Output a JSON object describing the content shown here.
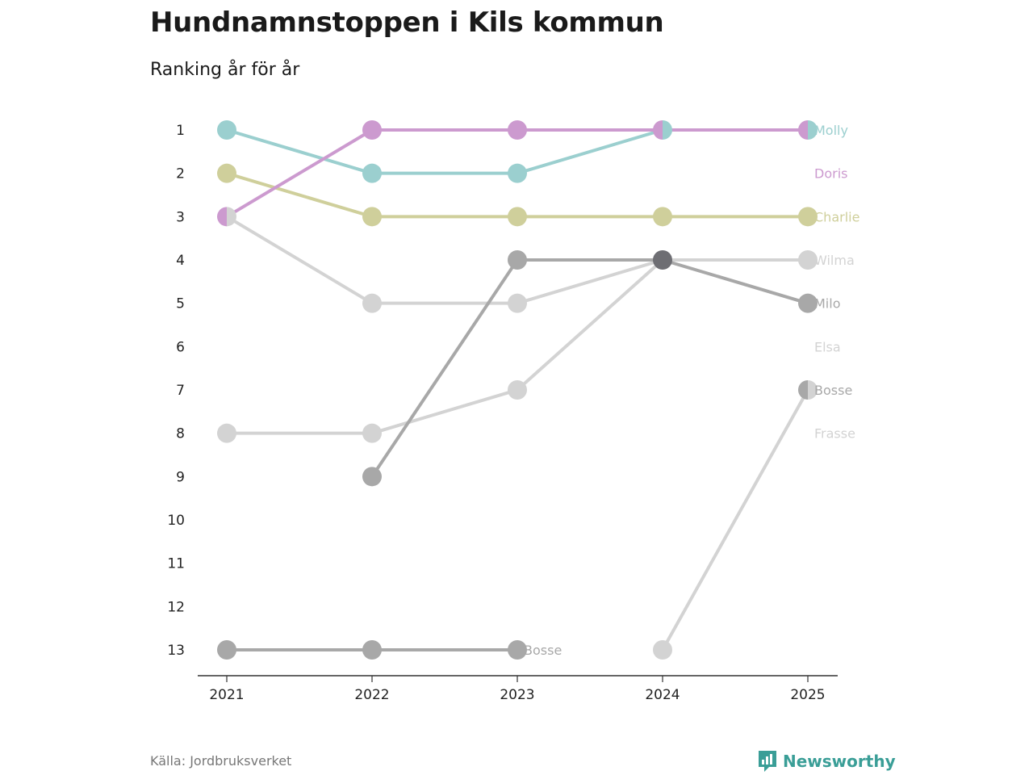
{
  "header": {
    "title": "Hundnamnstoppen i Kils kommun",
    "subtitle": "Ranking år för år"
  },
  "footer": {
    "source": "Källa: Jordbruksverket",
    "brand": "Newsworthy"
  },
  "colors": {
    "teal": "#9bcfcf",
    "purple": "#cc9acf",
    "olive": "#cfcf9b",
    "lightgray": "#d3d3d3",
    "gray": "#a8a8a8",
    "darkgray": "#6e6e73",
    "axis": "#333333",
    "brand": "#3a9e97"
  },
  "chart_data": {
    "type": "line",
    "title": "Hundnamnstoppen i Kils kommun",
    "subtitle": "Ranking år för år",
    "xlabel": "",
    "ylabel": "",
    "x": [
      "2021",
      "2022",
      "2023",
      "2024",
      "2025"
    ],
    "yticks": [
      1,
      2,
      3,
      4,
      5,
      6,
      7,
      8,
      9,
      10,
      11,
      12,
      13
    ],
    "ylim": [
      13,
      1
    ],
    "y_reversed": true,
    "grid": false,
    "series": [
      {
        "name": "Wilma",
        "color": "#d3d3d3",
        "values": [
          3,
          5,
          5,
          4,
          4
        ]
      },
      {
        "name": "Elsa",
        "color": "#d3d3d3",
        "values": [
          8,
          8,
          7,
          4,
          null
        ]
      },
      {
        "name": "Frasse",
        "color": "#d3d3d3",
        "values": [
          null,
          null,
          null,
          13,
          7
        ]
      },
      {
        "name": "Milo",
        "color": "#a8a8a8",
        "values": [
          null,
          9,
          4,
          4,
          5
        ]
      },
      {
        "name": "Bosse",
        "color": "#a8a8a8",
        "values": [
          13,
          13,
          13,
          null,
          7
        ]
      },
      {
        "name": "Charlie",
        "color": "#cfcf9b",
        "values": [
          2,
          3,
          3,
          3,
          3
        ]
      },
      {
        "name": "Molly",
        "color": "#9bcfcf",
        "values": [
          1,
          2,
          2,
          1,
          1
        ]
      },
      {
        "name": "Doris",
        "color": "#cc9acf",
        "values": [
          3,
          1,
          1,
          1,
          1
        ]
      }
    ],
    "overlap_markers": [
      {
        "x": "2024",
        "y": 4,
        "color": "#6e6e73"
      }
    ],
    "end_labels": [
      {
        "name": "Molly",
        "y": 1,
        "color": "#9bcfcf"
      },
      {
        "name": "Doris",
        "y": 2,
        "color": "#cc9acf"
      },
      {
        "name": "Charlie",
        "y": 3,
        "color": "#cfcf9b"
      },
      {
        "name": "Wilma",
        "y": 4,
        "color": "#d3d3d3"
      },
      {
        "name": "Milo",
        "y": 5,
        "color": "#a8a8a8"
      },
      {
        "name": "Elsa",
        "y": 6,
        "color": "#d3d3d3"
      },
      {
        "name": "Bosse",
        "y": 7,
        "color": "#a8a8a8"
      },
      {
        "name": "Frasse",
        "y": 8,
        "color": "#d3d3d3"
      }
    ],
    "annotations": [
      {
        "text": "Bosse",
        "x": "2023",
        "y": 13,
        "color": "#a8a8a8"
      }
    ]
  }
}
